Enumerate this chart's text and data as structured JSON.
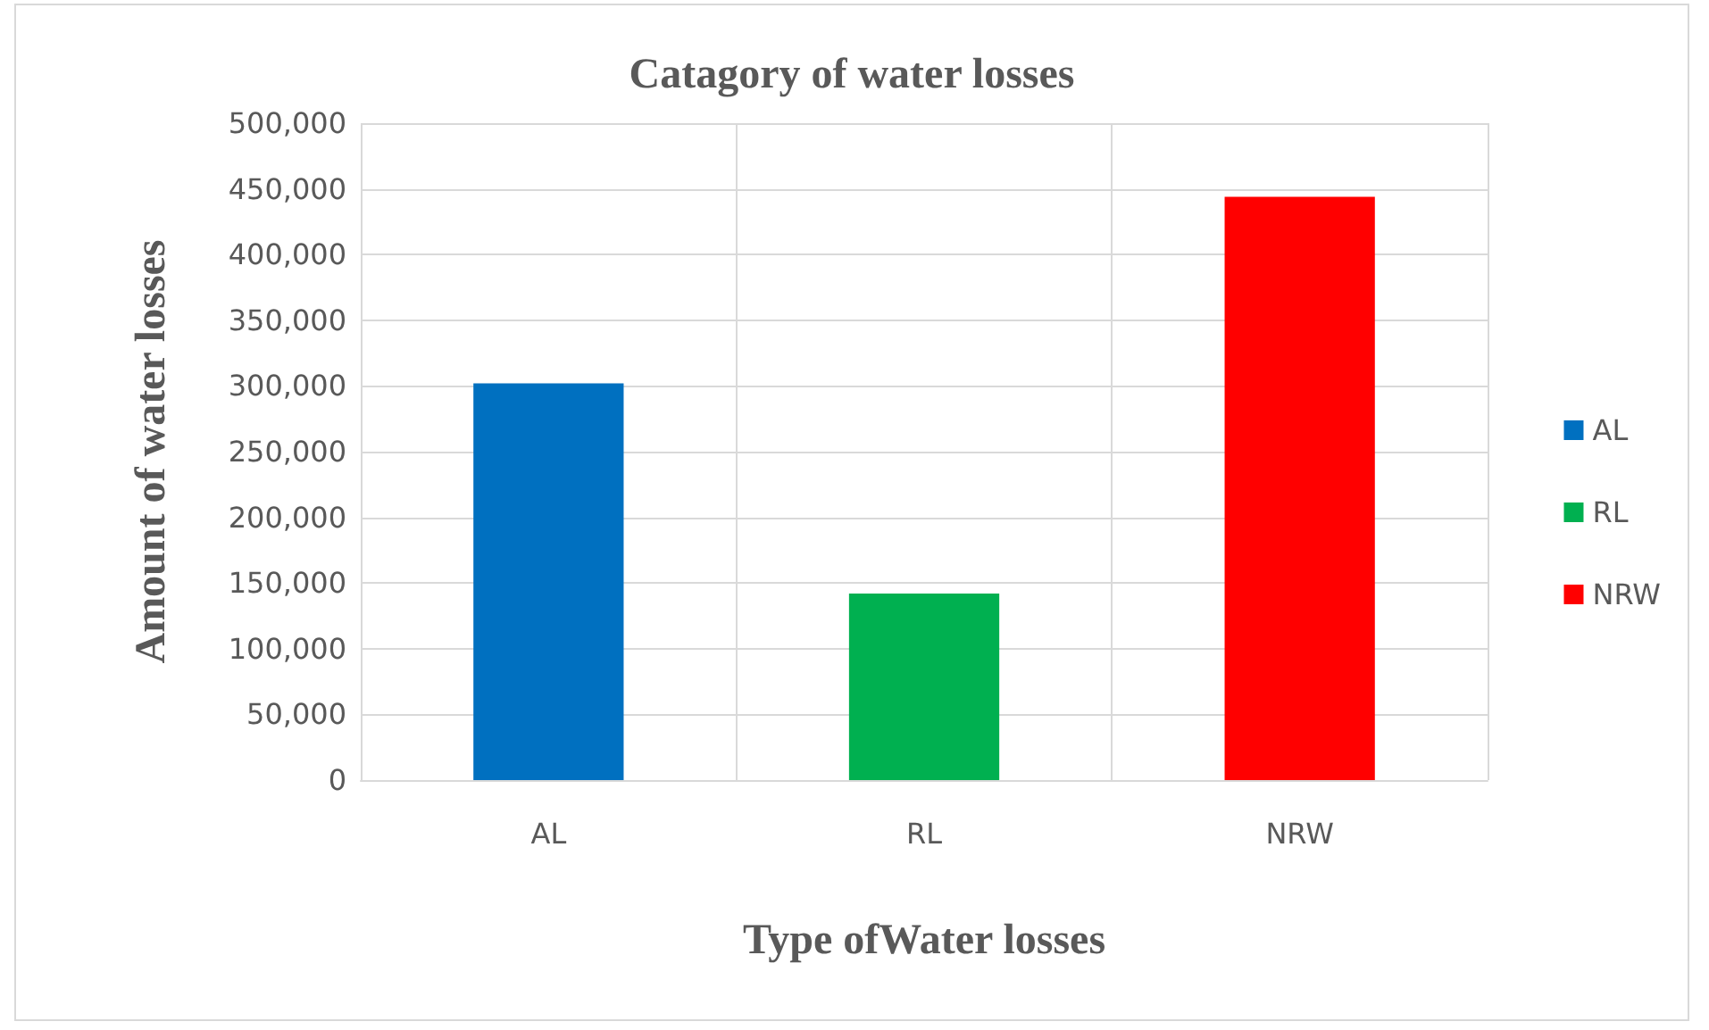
{
  "chart_data": {
    "type": "bar",
    "title": "Catagory of water losses",
    "xlabel": "Type ofWater losses",
    "ylabel": "Amount of water losses",
    "categories": [
      "AL",
      "RL",
      "NRW"
    ],
    "series": [
      {
        "name": "AL",
        "color": "#0070c0",
        "values": [
          302000,
          null,
          null
        ]
      },
      {
        "name": "RL",
        "color": "#00b050",
        "values": [
          null,
          142000,
          null
        ]
      },
      {
        "name": "NRW",
        "color": "#ff0000",
        "values": [
          null,
          null,
          444000
        ]
      }
    ],
    "ylim": [
      0,
      500000
    ],
    "yticks": [
      0,
      {
        "value": 50000,
        "label": "50,000"
      },
      {
        "value": 100000,
        "label": "100,000"
      },
      {
        "value": 150000,
        "label": "150,000"
      },
      {
        "value": 200000,
        "label": "200,000"
      },
      {
        "value": 250000,
        "label": "250,000"
      },
      {
        "value": 300000,
        "label": "300,000"
      },
      {
        "value": 350000,
        "label": "350,000"
      },
      {
        "value": 400000,
        "label": "400,000"
      },
      {
        "value": 450000,
        "label": "450,000"
      },
      {
        "value": 500000,
        "label": "500,000"
      }
    ],
    "grid": true,
    "legend": "right"
  }
}
